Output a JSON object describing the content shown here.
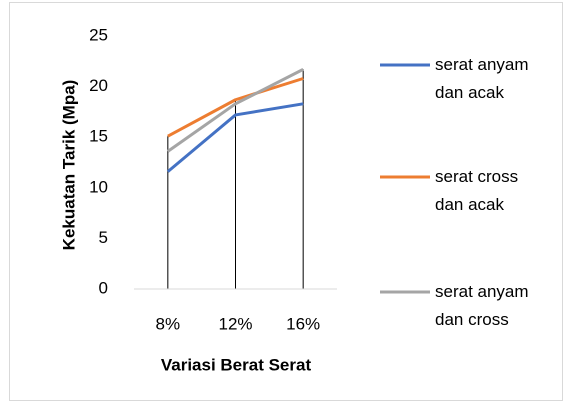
{
  "chart_data": {
    "type": "line",
    "categories": [
      "8%",
      "12%",
      "16%"
    ],
    "series": [
      {
        "name": "serat anyam dan acak",
        "color": "#4472c4",
        "values": [
          11.6,
          17.2,
          18.3
        ]
      },
      {
        "name": "serat cross dan acak",
        "color": "#ed7d31",
        "values": [
          15.1,
          18.7,
          20.8
        ]
      },
      {
        "name": "serat anyam dan cross",
        "color": "#a5a5a5",
        "values": [
          13.6,
          18.3,
          21.7
        ]
      }
    ],
    "ylim": [
      0,
      25
    ],
    "yticks": [
      0,
      5,
      10,
      15,
      20,
      25
    ],
    "y_label": "Kekuatan Tarik (Mpa)",
    "x_label": "Variasi Berat Serat",
    "drop_lines": true,
    "legend": "right"
  }
}
